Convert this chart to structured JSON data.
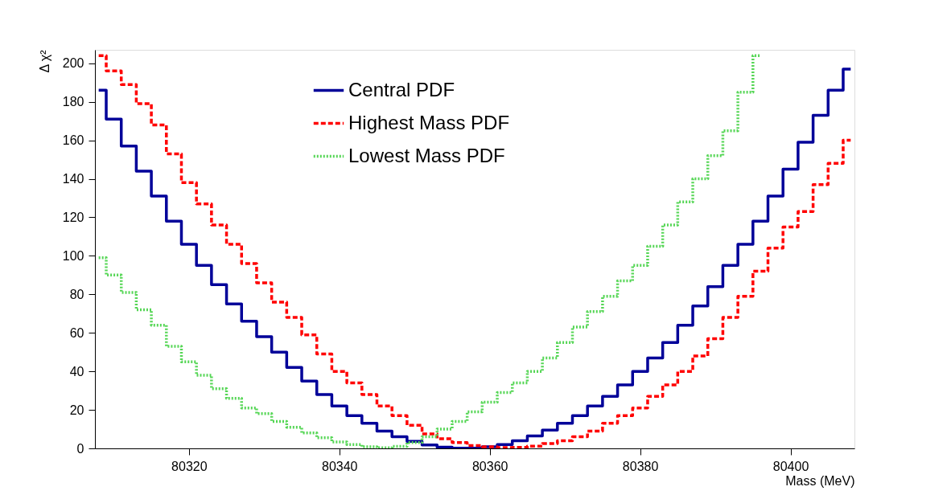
{
  "chart_data": {
    "type": "step",
    "xlabel": "Mass (MeV)",
    "ylabel": "Δ χ²",
    "x": [
      80308,
      80310,
      80312,
      80314,
      80316,
      80318,
      80320,
      80322,
      80324,
      80326,
      80328,
      80330,
      80332,
      80334,
      80336,
      80338,
      80340,
      80342,
      80344,
      80346,
      80348,
      80350,
      80352,
      80354,
      80356,
      80358,
      80360,
      80362,
      80364,
      80366,
      80368,
      80370,
      80372,
      80374,
      80376,
      80378,
      80380,
      80382,
      80384,
      80386,
      80388,
      80390,
      80392,
      80394,
      80396,
      80398,
      80400,
      80402,
      80404,
      80406,
      80408
    ],
    "series": [
      {
        "name": "Central PDF",
        "color": "#000099",
        "line_style": "solid",
        "values": [
          186,
          171,
          157,
          144,
          131,
          118,
          106,
          95,
          85,
          75,
          66,
          58,
          50,
          42,
          35,
          28,
          22,
          17,
          13,
          9,
          6,
          3.6,
          1.8,
          0.6,
          0.1,
          0.1,
          0.8,
          2,
          4,
          6.5,
          9.5,
          13,
          17,
          22,
          27,
          33,
          40,
          47,
          55,
          64,
          74,
          84,
          95,
          106,
          118,
          131,
          145,
          159,
          173,
          186,
          197
        ]
      },
      {
        "name": "Highest Mass PDF",
        "color": "#ff0000",
        "line_style": "dashed",
        "values": [
          204,
          196,
          189,
          179,
          168,
          153,
          138,
          127,
          116,
          106,
          96,
          86,
          76,
          68,
          59,
          49,
          40,
          34,
          28,
          22,
          17,
          12,
          7.5,
          5,
          3,
          1.5,
          0.8,
          0.4,
          0.5,
          1.2,
          2.5,
          4,
          6,
          9,
          13,
          17,
          21,
          27,
          33,
          40,
          48,
          57,
          68,
          79,
          92,
          104,
          115,
          123,
          137,
          148,
          160
        ]
      },
      {
        "name": "Lowest Mass PDF",
        "color": "#55d655",
        "line_style": "dotted",
        "values": [
          99,
          90,
          81,
          72,
          64,
          53,
          45,
          38,
          31,
          26,
          21,
          18,
          14,
          11,
          8,
          5.5,
          3.3,
          2,
          0.8,
          0.3,
          1,
          3,
          6,
          10,
          14,
          19,
          24,
          29,
          34,
          40,
          47,
          55,
          63,
          71,
          79,
          87,
          95,
          105,
          116,
          128,
          140,
          152,
          165,
          185,
          204,
          null,
          null,
          null,
          null,
          null,
          null
        ]
      }
    ],
    "xlim": [
      80307.5,
      80408.5
    ],
    "xticks": [
      80320,
      80340,
      80360,
      80380,
      80400
    ],
    "ylim": [
      0,
      207
    ],
    "yticks": [
      0,
      20,
      40,
      60,
      80,
      100,
      120,
      140,
      160,
      180,
      200
    ],
    "grid": false,
    "legend": "top"
  }
}
